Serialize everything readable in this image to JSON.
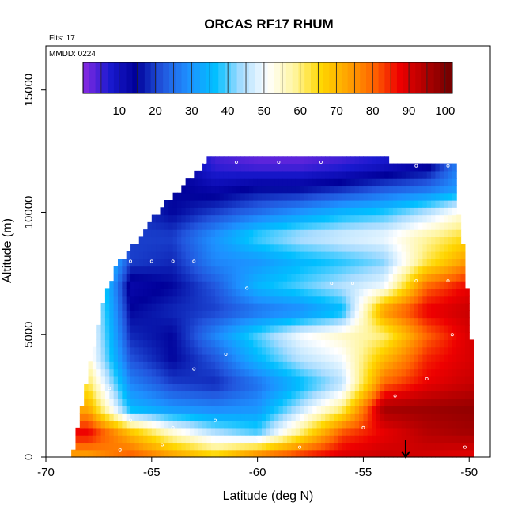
{
  "chart_data": {
    "type": "heatmap",
    "title": "ORCAS RF17 RHUM",
    "annotations": [
      "Flts: 17",
      "MMDD: 0224"
    ],
    "xlabel": "Latitude (deg N)",
    "ylabel": "Altitude (m)",
    "xlim": [
      -70,
      -49
    ],
    "ylim": [
      0,
      16800
    ],
    "x_ticks": [
      -70,
      -65,
      -60,
      -55,
      -50
    ],
    "y_ticks": [
      0,
      5000,
      10000,
      15000
    ],
    "colorbar": {
      "range": [
        0,
        102
      ],
      "ticks": [
        10,
        20,
        30,
        40,
        50,
        60,
        70,
        80,
        90,
        100
      ],
      "colors": [
        "#8a2be2",
        "#1a1ad0",
        "#000099",
        "#2255dd",
        "#1e90ff",
        "#00bfff",
        "#a8dcff",
        "#ffffff",
        "#fff5a0",
        "#ffd700",
        "#ffa500",
        "#ff6600",
        "#ee0000",
        "#b00000",
        "#700000"
      ]
    },
    "cells": {
      "domain_upper_altitude": [
        [
          -68.7,
          200
        ],
        [
          -68.2,
          2500
        ],
        [
          -67.6,
          4800
        ],
        [
          -67.2,
          6500
        ],
        [
          -66.6,
          7800
        ],
        [
          -66.0,
          8300
        ],
        [
          -65.2,
          9300
        ],
        [
          -64.0,
          10500
        ],
        [
          -63.0,
          11400
        ],
        [
          -62.2,
          12100
        ],
        [
          -55.5,
          12200
        ],
        [
          -53.0,
          11900
        ],
        [
          -50.7,
          11800
        ],
        [
          -50.5,
          9800
        ],
        [
          -50.2,
          8000
        ],
        [
          -49.9,
          4700
        ],
        [
          -49.7,
          4300
        ]
      ],
      "rh_profiles": [
        {
          "lat": -68.0,
          "levels": [
            [
              0,
              72
            ],
            [
              1000,
              88
            ],
            [
              2000,
              72
            ],
            [
              3000,
              62
            ],
            [
              4000,
              55
            ],
            [
              5000,
              55
            ]
          ]
        },
        {
          "lat": -66.0,
          "levels": [
            [
              0,
              82
            ],
            [
              1000,
              70
            ],
            [
              2000,
              35
            ],
            [
              3000,
              28
            ],
            [
              4000,
              22
            ],
            [
              5000,
              18
            ],
            [
              6000,
              15
            ],
            [
              7000,
              12
            ],
            [
              8000,
              20
            ]
          ]
        },
        {
          "lat": -64.0,
          "levels": [
            [
              0,
              75
            ],
            [
              1000,
              55
            ],
            [
              2000,
              30
            ],
            [
              3000,
              20
            ],
            [
              4000,
              15
            ],
            [
              5000,
              15
            ],
            [
              6000,
              18
            ],
            [
              7000,
              15
            ],
            [
              8000,
              18
            ],
            [
              9000,
              20
            ],
            [
              10000,
              15
            ]
          ]
        },
        {
          "lat": -62.0,
          "levels": [
            [
              0,
              68
            ],
            [
              1000,
              45
            ],
            [
              2000,
              28
            ],
            [
              3000,
              18
            ],
            [
              4000,
              22
            ],
            [
              5000,
              28
            ],
            [
              6000,
              20
            ],
            [
              7000,
              22
            ],
            [
              8000,
              28
            ],
            [
              9000,
              30
            ],
            [
              10000,
              20
            ],
            [
              11000,
              12
            ],
            [
              12000,
              5
            ]
          ]
        },
        {
          "lat": -60.0,
          "levels": [
            [
              0,
              80
            ],
            [
              1000,
              40
            ],
            [
              2000,
              30
            ],
            [
              3000,
              25
            ],
            [
              4000,
              35
            ],
            [
              5000,
              40
            ],
            [
              6000,
              25
            ],
            [
              7000,
              35
            ],
            [
              8000,
              30
            ],
            [
              9000,
              40
            ],
            [
              10000,
              25
            ],
            [
              11000,
              15
            ],
            [
              12000,
              3
            ]
          ]
        },
        {
          "lat": -58.0,
          "levels": [
            [
              0,
              86
            ],
            [
              1000,
              60
            ],
            [
              2000,
              45
            ],
            [
              3000,
              35
            ],
            [
              4000,
              45
            ],
            [
              5000,
              50
            ],
            [
              6000,
              28
            ],
            [
              7000,
              40
            ],
            [
              8000,
              35
            ],
            [
              9000,
              45
            ],
            [
              10000,
              30
            ],
            [
              11000,
              15
            ],
            [
              12000,
              3
            ]
          ]
        },
        {
          "lat": -56.0,
          "levels": [
            [
              0,
              90
            ],
            [
              1000,
              82
            ],
            [
              2000,
              60
            ],
            [
              3000,
              45
            ],
            [
              4000,
              50
            ],
            [
              5000,
              55
            ],
            [
              6000,
              35
            ],
            [
              7000,
              45
            ],
            [
              8000,
              38
            ],
            [
              9000,
              48
            ],
            [
              10000,
              35
            ],
            [
              11000,
              18
            ],
            [
              12000,
              5
            ]
          ]
        },
        {
          "lat": -54.0,
          "levels": [
            [
              0,
              92
            ],
            [
              1000,
              88
            ],
            [
              2000,
              96
            ],
            [
              3000,
              80
            ],
            [
              4000,
              70
            ],
            [
              5000,
              60
            ],
            [
              6000,
              75
            ],
            [
              7000,
              50
            ],
            [
              8000,
              42
            ],
            [
              9000,
              50
            ],
            [
              10000,
              38
            ],
            [
              11000,
              22
            ],
            [
              12000,
              8
            ]
          ]
        },
        {
          "lat": -52.0,
          "levels": [
            [
              0,
              90
            ],
            [
              1000,
              94
            ],
            [
              2000,
              97
            ],
            [
              3000,
              88
            ],
            [
              4000,
              85
            ],
            [
              5000,
              80
            ],
            [
              6000,
              88
            ],
            [
              7000,
              80
            ],
            [
              8000,
              62
            ],
            [
              9000,
              58
            ],
            [
              10000,
              45
            ],
            [
              11000,
              25
            ],
            [
              12000,
              12
            ]
          ]
        },
        {
          "lat": -50.0,
          "levels": [
            [
              0,
              88
            ],
            [
              1000,
              96
            ],
            [
              2000,
              98
            ],
            [
              3000,
              92
            ],
            [
              4000,
              90
            ],
            [
              5000,
              90
            ],
            [
              6000,
              92
            ],
            [
              7000,
              88
            ],
            [
              8000,
              75
            ],
            [
              9000,
              65
            ],
            [
              10000,
              55
            ],
            [
              11000,
              32
            ]
          ]
        }
      ]
    },
    "markers": {
      "open_circles": [
        [
          -62.5,
          12050
        ],
        [
          -61.0,
          12050
        ],
        [
          -59.0,
          12050
        ],
        [
          -57.0,
          12050
        ],
        [
          -52.5,
          11900
        ],
        [
          -51.0,
          11900
        ],
        [
          -66.0,
          8000
        ],
        [
          -65.0,
          8000
        ],
        [
          -64.0,
          8000
        ],
        [
          -63.0,
          8000
        ],
        [
          -56.5,
          7100
        ],
        [
          -55.5,
          7100
        ],
        [
          -60.5,
          6900
        ],
        [
          -52.5,
          7200
        ],
        [
          -51.0,
          7200
        ],
        [
          -67.0,
          2800
        ],
        [
          -66.0,
          1500
        ],
        [
          -64.0,
          1200
        ],
        [
          -62.0,
          1500
        ],
        [
          -60.0,
          800
        ],
        [
          -58.0,
          400
        ],
        [
          -55.0,
          1200
        ],
        [
          -53.5,
          2500
        ],
        [
          -52.0,
          3200
        ],
        [
          -50.8,
          5000
        ],
        [
          -50.2,
          400
        ],
        [
          -66.5,
          300
        ],
        [
          -64.5,
          500
        ],
        [
          -63.0,
          3600
        ],
        [
          -61.5,
          4200
        ]
      ],
      "arrow": {
        "lat": -53.0,
        "from_altitude": 700,
        "to_altitude": 0
      }
    }
  }
}
